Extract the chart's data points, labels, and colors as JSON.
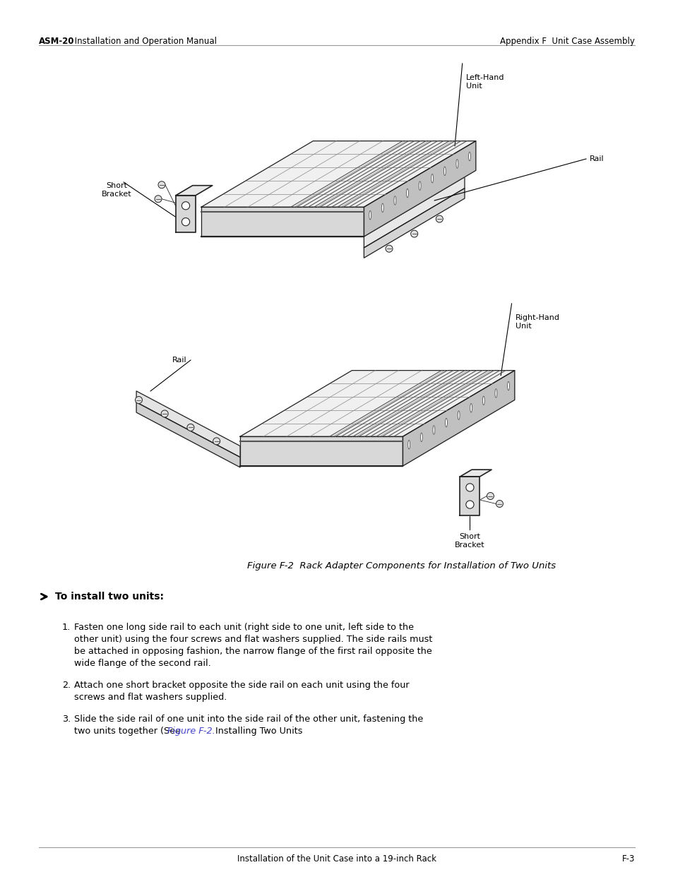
{
  "page_title_left_bold": "ASM-20",
  "page_title_left_normal": " Installation and Operation Manual",
  "page_title_right": "Appendix F  Unit Case Assembly",
  "footer_center": "Installation of the Unit Case into a 19-inch Rack",
  "footer_right": "F-3",
  "figure_caption": "Figure F-2  Rack Adapter Components for Installation of Two Units",
  "section_header": "To install two units:",
  "inst1_line1": "Fasten one long side rail to each unit (right side to one unit, left side to the",
  "inst1_line2": "other unit) using the four screws and flat washers supplied. The side rails must",
  "inst1_line3": "be attached in opposing fashion, the narrow flange of the first rail opposite the",
  "inst1_line4": "wide flange of the second rail.",
  "inst2_line1": "Attach one short bracket opposite the side rail on each unit using the four",
  "inst2_line2": "screws and flat washers supplied.",
  "inst3_line1": "Slide the side rail of one unit into the side rail of the other unit, fastening the",
  "inst3_line2a": "two units together (See ",
  "inst3_line2b": "Figure F-2.",
  "inst3_line2c": "  Installing Two Units",
  "bg_color": "#ffffff",
  "text_color": "#000000",
  "link_color": "#4444cc",
  "line_gray": "#aaaaaa",
  "diagram_line": "#222222",
  "diagram_fill_top": "#f0f0f0",
  "diagram_fill_front": "#d8d8d8",
  "diagram_fill_side": "#c0c0c0",
  "diagram_fill_vent": "#e0e0e0"
}
